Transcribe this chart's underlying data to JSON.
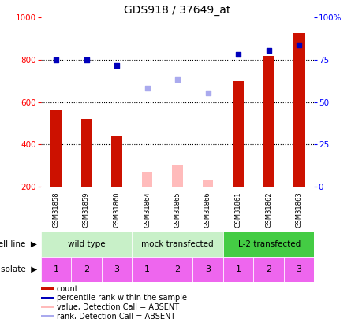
{
  "title": "GDS918 / 37649_at",
  "samples": [
    "GSM31858",
    "GSM31859",
    "GSM31860",
    "GSM31864",
    "GSM31865",
    "GSM31866",
    "GSM31861",
    "GSM31862",
    "GSM31863"
  ],
  "count_values": [
    560,
    520,
    440,
    null,
    null,
    null,
    700,
    820,
    925
  ],
  "count_absent": [
    null,
    null,
    null,
    265,
    305,
    230,
    null,
    null,
    null
  ],
  "percentile_values": [
    800,
    800,
    775,
    null,
    null,
    null,
    825,
    845,
    870
  ],
  "percentile_absent": [
    null,
    null,
    null,
    665,
    705,
    645,
    null,
    null,
    null
  ],
  "ylim": [
    200,
    1000
  ],
  "yticks_left": [
    200,
    400,
    600,
    800,
    1000
  ],
  "ytick_right_labels": [
    "0",
    "25",
    "50",
    "75",
    "100%"
  ],
  "grid_lines": [
    400,
    600,
    800
  ],
  "cell_line_groups": [
    {
      "label": "wild type",
      "start": 0,
      "end": 3,
      "color": "#c8f0c8"
    },
    {
      "label": "mock transfected",
      "start": 3,
      "end": 6,
      "color": "#c8f0c8"
    },
    {
      "label": "IL-2 transfected",
      "start": 6,
      "end": 9,
      "color": "#44cc44"
    }
  ],
  "isolate_values": [
    "1",
    "2",
    "3",
    "1",
    "2",
    "3",
    "1",
    "2",
    "3"
  ],
  "bar_color_present": "#cc1100",
  "bar_color_absent": "#ffbbbb",
  "dot_color_present": "#0000bb",
  "dot_color_absent": "#aaaaee",
  "label_area_color": "#cccccc",
  "cell_line_color_light": "#c8f0c8",
  "cell_line_color_dark": "#44cc44",
  "isolate_color": "#ee66ee",
  "bar_width": 0.35
}
